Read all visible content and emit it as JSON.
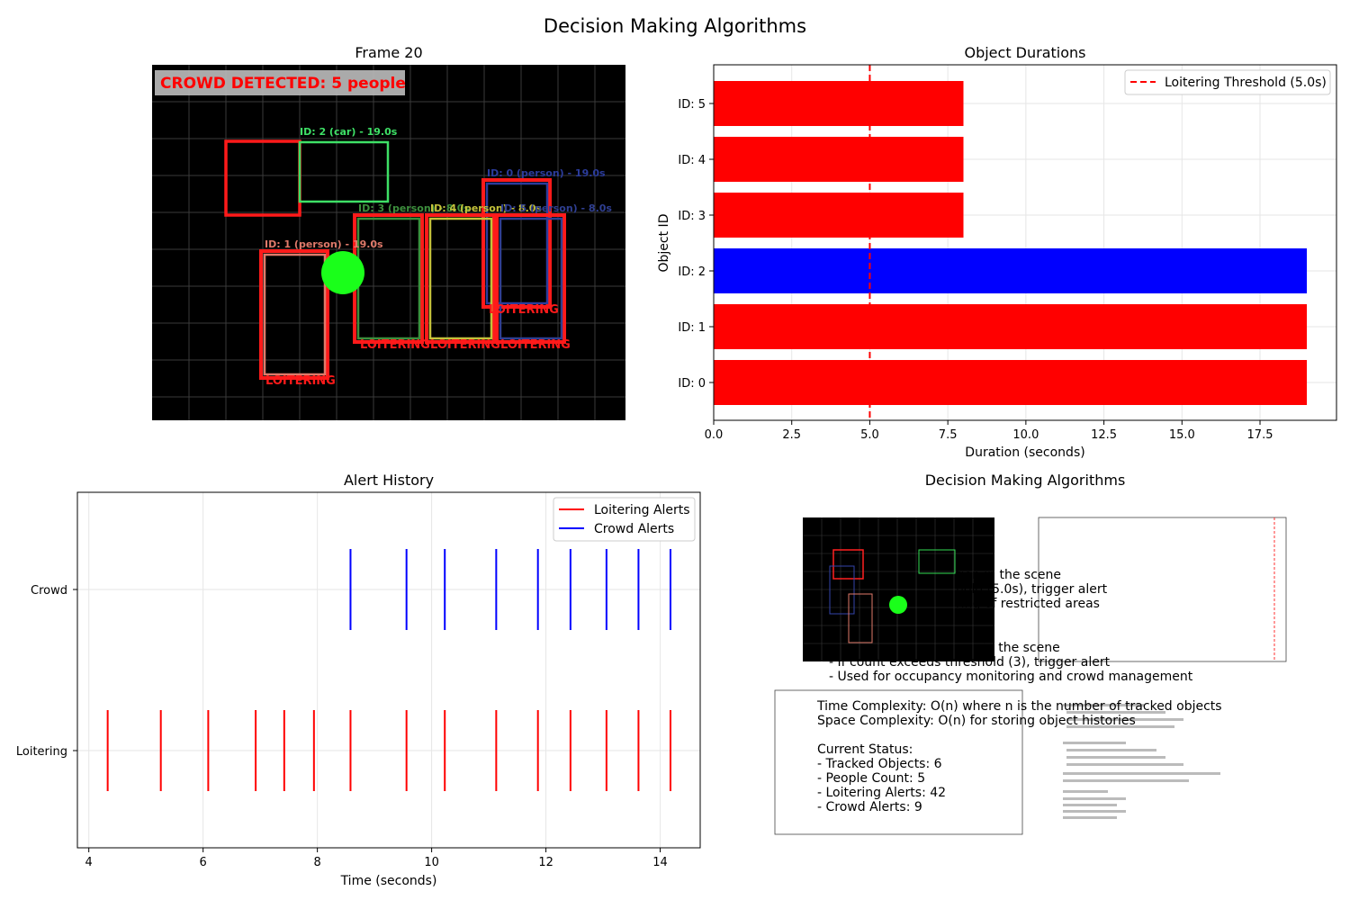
{
  "figure": {
    "title": "Decision Making Algorithms"
  },
  "chart_data": [
    {
      "type": "image",
      "title": "Frame 20",
      "banner": "CROWD DETECTED: 5 people",
      "boxes": [
        {
          "label": "ID: 2 (car) - 19.0s",
          "color": "#3ee066",
          "loitering": false
        },
        {
          "label": "ID: 0 (person) - 19.0s",
          "color": "#2b3c9c",
          "loitering": true,
          "loiter_label": "LOITERING"
        },
        {
          "label": "ID: 3 (person) - 8.0s",
          "color": "#3d8f3d",
          "loitering": true,
          "loiter_label": "LOITERING"
        },
        {
          "label": "ID: 4 (person) - 8.0s",
          "color": "#c4c23a",
          "loitering": true,
          "loiter_label": "LOITERING"
        },
        {
          "label": "ID: 5 (person) - 8.0s",
          "color": "#2f3f92",
          "loitering": true,
          "loiter_label": "LOITERING"
        },
        {
          "label": "ID: 1 (person) - 19.0s",
          "color": "#e07a6a",
          "loitering": true,
          "loiter_label": "LOITERING"
        }
      ]
    },
    {
      "type": "bar",
      "orientation": "horizontal",
      "title": "Object Durations",
      "xlabel": "Duration (seconds)",
      "ylabel": "Object ID",
      "categories": [
        "ID: 0",
        "ID: 1",
        "ID: 2",
        "ID: 3",
        "ID: 4",
        "ID: 5"
      ],
      "values": [
        19.0,
        19.0,
        19.0,
        8.0,
        8.0,
        8.0
      ],
      "colors": [
        "#ff0000",
        "#ff0000",
        "#0000ff",
        "#ff0000",
        "#ff0000",
        "#ff0000"
      ],
      "xlim": [
        0,
        19.95
      ],
      "xticks": [
        "0.0",
        "2.5",
        "5.0",
        "7.5",
        "10.0",
        "12.5",
        "15.0",
        "17.5"
      ],
      "threshold": 5.0,
      "legend": [
        "Loitering Threshold (5.0s)"
      ],
      "legend_position": "top-right",
      "grid": true
    },
    {
      "type": "event",
      "title": "Alert History",
      "xlabel": "Time (seconds)",
      "xlim": [
        3.8,
        14.7
      ],
      "xticks": [
        "4",
        "6",
        "8",
        "10",
        "12",
        "14"
      ],
      "yticklabels": [
        "Crowd",
        "Loitering"
      ],
      "legend_position": "top-right",
      "grid": true,
      "series": [
        {
          "name": "Loitering Alerts",
          "color": "#ff0000",
          "x": [
            4.33,
            5.26,
            6.09,
            6.92,
            7.42,
            7.94,
            8.58,
            9.56,
            10.23,
            11.13,
            11.86,
            12.43,
            13.06,
            13.62,
            14.18
          ]
        },
        {
          "name": "Crowd Alerts",
          "color": "#0000ff",
          "x": [
            8.58,
            9.56,
            10.23,
            11.13,
            11.86,
            12.43,
            13.06,
            13.62,
            14.18
          ]
        }
      ]
    },
    {
      "type": "text",
      "title": "Decision Making Algorithms",
      "lines": [
        "tion in the scene",
        "hold (5.0s), trigger alert",
        "ring of restricted areas",
        "",
        "in the scene",
        "- If count exceeds threshold (3), trigger alert",
        "- Used for occupancy monitoring and crowd management",
        "",
        "Time Complexity: O(n) where n is the number of tracked objects",
        "Space Complexity: O(n) for storing object histories",
        "",
        "Current Status:",
        "- Tracked Objects: 6",
        "- People Count: 5",
        "- Loitering Alerts: 42",
        "- Crowd Alerts: 9"
      ]
    }
  ]
}
